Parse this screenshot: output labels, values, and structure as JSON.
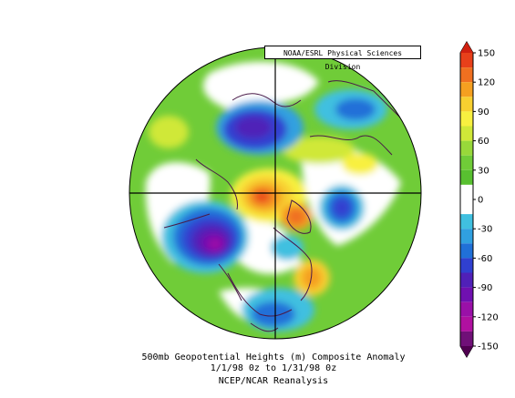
{
  "credit": "NOAA/ESRL Physical Sciences Division",
  "caption": {
    "line1": "500mb Geopotential Heights (m)   Composite Anomaly",
    "line2": "1/1/98 0z  to 1/31/98 0z",
    "line3": "NCEP/NCAR Reanalysis"
  },
  "colorbar": {
    "labels": [
      "150",
      "120",
      "90",
      "60",
      "30",
      "0",
      "-30",
      "-60",
      "-90",
      "-120",
      "-150"
    ],
    "bins": [
      {
        "from": 135,
        "to": 150,
        "color": "#e8401a"
      },
      {
        "from": 120,
        "to": 135,
        "color": "#f07020"
      },
      {
        "from": 105,
        "to": 120,
        "color": "#f5a020"
      },
      {
        "from": 90,
        "to": 105,
        "color": "#f8d030"
      },
      {
        "from": 75,
        "to": 90,
        "color": "#f8f040"
      },
      {
        "from": 60,
        "to": 75,
        "color": "#d0e838"
      },
      {
        "from": 45,
        "to": 60,
        "color": "#98d83a"
      },
      {
        "from": 30,
        "to": 45,
        "color": "#70cc38"
      },
      {
        "from": 15,
        "to": 30,
        "color": "#58c030"
      },
      {
        "from": 0,
        "to": 15,
        "color": "#ffffff"
      },
      {
        "from": -15,
        "to": 0,
        "color": "#ffffff"
      },
      {
        "from": -30,
        "to": -15,
        "color": "#40c0e0"
      },
      {
        "from": -45,
        "to": -30,
        "color": "#30a0e0"
      },
      {
        "from": -60,
        "to": -45,
        "color": "#2070d8"
      },
      {
        "from": -75,
        "to": -60,
        "color": "#3040d0"
      },
      {
        "from": -90,
        "to": -75,
        "color": "#5020b8"
      },
      {
        "from": -105,
        "to": -90,
        "color": "#7010b0"
      },
      {
        "from": -120,
        "to": -105,
        "color": "#9a10a8"
      },
      {
        "from": -135,
        "to": -120,
        "color": "#b010a0"
      },
      {
        "from": -150,
        "to": -135,
        "color": "#701078"
      }
    ]
  },
  "colors": {
    "outline": "#000000",
    "coast": "#4a1a48",
    "base": "#70cc38"
  }
}
